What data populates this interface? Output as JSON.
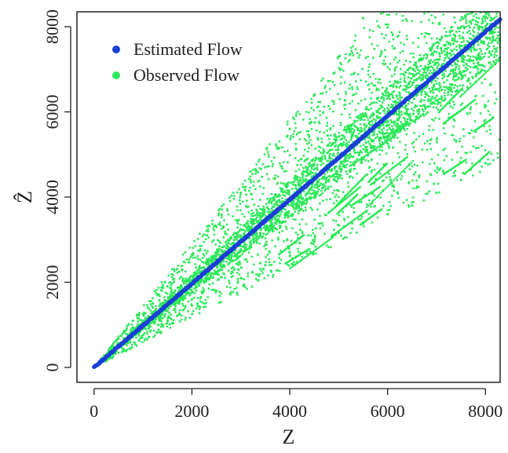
{
  "chart_data": {
    "type": "scatter",
    "xlabel": "Z",
    "ylabel": "Ẑ",
    "xlim": [
      -350,
      8300
    ],
    "ylim": [
      -350,
      8350
    ],
    "x_ticks": [
      0,
      2000,
      4000,
      6000,
      8000
    ],
    "y_ticks": [
      0,
      2000,
      4000,
      6000,
      8000
    ],
    "x_tick_labels": [
      "0",
      "2000",
      "4000",
      "6000",
      "8000"
    ],
    "y_tick_labels": [
      "0",
      "2000",
      "4000",
      "6000",
      "8000"
    ],
    "grid": false,
    "legend_position": "top-left",
    "series": [
      {
        "name": "Estimated Flow",
        "color": "#1a3fd6",
        "description_slope": 0.985,
        "points": [
          [
            0,
            0
          ],
          [
            8300,
            8175
          ]
        ]
      },
      {
        "name": "Observed Flow",
        "color": "#2ee85a",
        "upper_ratio": 1.46,
        "lower_ratio": 0.58,
        "points": [
          [
            500,
            560
          ],
          [
            800,
            940
          ],
          [
            1000,
            1250
          ],
          [
            1200,
            1500
          ],
          [
            1500,
            1900
          ],
          [
            1800,
            2300
          ],
          [
            2000,
            2650
          ],
          [
            2500,
            3300
          ],
          [
            3000,
            4100
          ],
          [
            3500,
            4700
          ],
          [
            4000,
            5600
          ],
          [
            4500,
            6400
          ],
          [
            5000,
            7300
          ],
          [
            5500,
            8200
          ],
          [
            1000,
            760
          ],
          [
            1500,
            1100
          ],
          [
            2000,
            1450
          ],
          [
            2500,
            1800
          ],
          [
            3000,
            2100
          ],
          [
            3500,
            2400
          ],
          [
            4000,
            2700
          ],
          [
            4500,
            2950
          ],
          [
            5000,
            3200
          ],
          [
            5500,
            3400
          ],
          [
            6000,
            3600
          ],
          [
            6500,
            3800
          ],
          [
            7000,
            4100
          ],
          [
            7500,
            4400
          ],
          [
            8000,
            4800
          ]
        ]
      }
    ]
  }
}
